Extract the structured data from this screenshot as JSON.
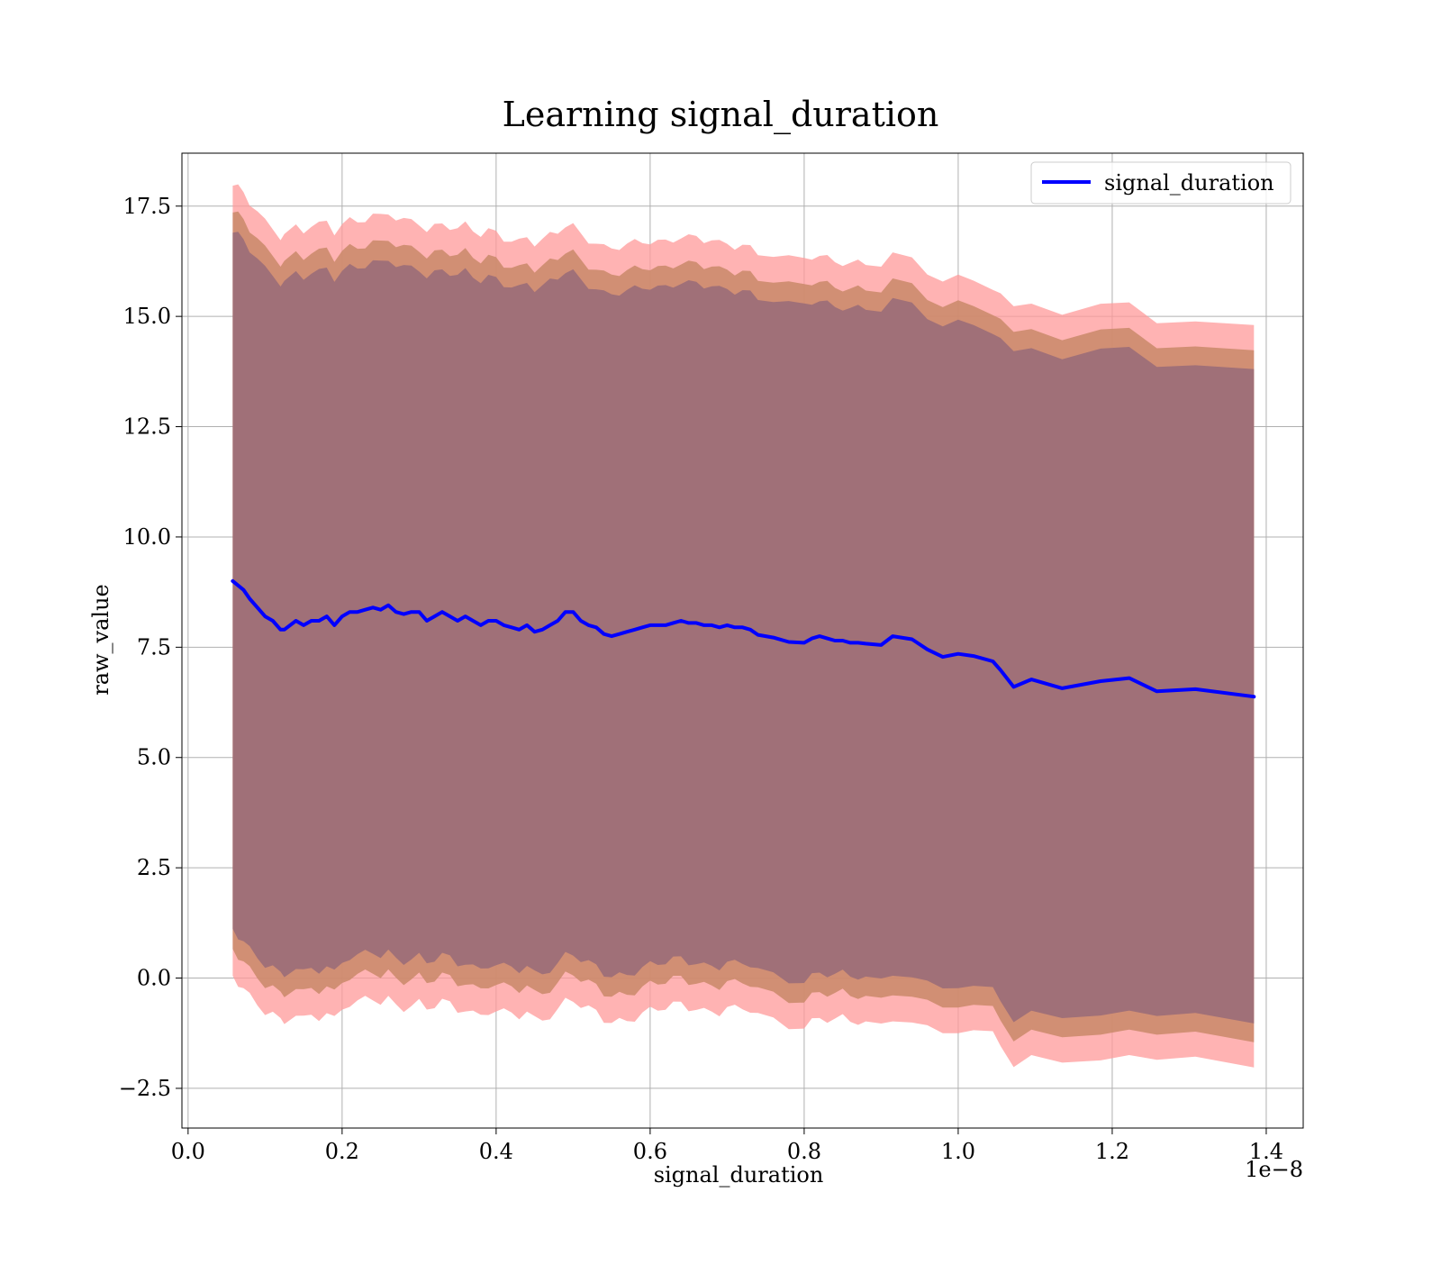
{
  "chart_data": {
    "type": "area",
    "title": "Learning signal_duration",
    "xlabel": "signal_duration",
    "ylabel": "raw_value",
    "x_offset_label": "1e−8",
    "xlim": [
      -0.008,
      1.448
    ],
    "ylim": [
      -3.4,
      18.7
    ],
    "x_ticks": [
      0.0,
      0.2,
      0.4,
      0.6,
      0.8,
      1.0,
      1.2,
      1.4
    ],
    "x_tick_labels": [
      "0.0",
      "0.2",
      "0.4",
      "0.6",
      "0.8",
      "1.0",
      "1.2",
      "1.4"
    ],
    "y_ticks": [
      -2.5,
      0.0,
      2.5,
      5.0,
      7.5,
      10.0,
      12.5,
      15.0,
      17.5
    ],
    "y_tick_labels": [
      "−2.5",
      "0.0",
      "2.5",
      "5.0",
      "7.5",
      "10.0",
      "12.5",
      "15.0",
      "17.5"
    ],
    "grid": true,
    "legend_position": "top-right",
    "colors": {
      "line": "#0000ff",
      "band_outer": "#ff9999",
      "band_middle": "#c98868",
      "band_inner": "#a07078",
      "grid": "#b0b0b0"
    },
    "series": [
      {
        "name": "signal_duration",
        "x": [
          0.058,
          0.065,
          0.072,
          0.08,
          0.09,
          0.1,
          0.11,
          0.12,
          0.125,
          0.14,
          0.15,
          0.16,
          0.17,
          0.18,
          0.19,
          0.2,
          0.21,
          0.22,
          0.23,
          0.24,
          0.25,
          0.26,
          0.27,
          0.28,
          0.29,
          0.3,
          0.31,
          0.32,
          0.33,
          0.34,
          0.35,
          0.36,
          0.37,
          0.38,
          0.39,
          0.4,
          0.41,
          0.42,
          0.43,
          0.44,
          0.45,
          0.46,
          0.47,
          0.48,
          0.49,
          0.5,
          0.51,
          0.52,
          0.53,
          0.54,
          0.55,
          0.56,
          0.57,
          0.58,
          0.59,
          0.6,
          0.61,
          0.62,
          0.63,
          0.64,
          0.65,
          0.66,
          0.67,
          0.68,
          0.69,
          0.7,
          0.71,
          0.72,
          0.73,
          0.74,
          0.76,
          0.78,
          0.8,
          0.81,
          0.82,
          0.83,
          0.84,
          0.85,
          0.86,
          0.87,
          0.88,
          0.9,
          0.915,
          0.94,
          0.96,
          0.98,
          1.0,
          1.02,
          1.045,
          1.055,
          1.072,
          1.095,
          1.135,
          1.185,
          1.222,
          1.258,
          1.308,
          1.384
        ],
        "y": [
          9.0,
          8.9,
          8.8,
          8.6,
          8.4,
          8.2,
          8.1,
          7.9,
          7.9,
          8.1,
          8.0,
          8.1,
          8.1,
          8.2,
          8.0,
          8.2,
          8.3,
          8.3,
          8.35,
          8.4,
          8.35,
          8.45,
          8.3,
          8.25,
          8.3,
          8.3,
          8.1,
          8.2,
          8.3,
          8.2,
          8.1,
          8.2,
          8.1,
          8.0,
          8.1,
          8.1,
          8.0,
          7.95,
          7.9,
          8.0,
          7.85,
          7.9,
          8.0,
          8.1,
          8.3,
          8.3,
          8.1,
          8.0,
          7.95,
          7.8,
          7.75,
          7.8,
          7.85,
          7.9,
          7.95,
          8.0,
          8.0,
          8.0,
          8.05,
          8.1,
          8.05,
          8.05,
          8.0,
          8.0,
          7.95,
          8.0,
          7.95,
          7.95,
          7.9,
          7.78,
          7.72,
          7.62,
          7.6,
          7.7,
          7.75,
          7.7,
          7.65,
          7.65,
          7.6,
          7.6,
          7.58,
          7.55,
          7.75,
          7.68,
          7.45,
          7.28,
          7.35,
          7.3,
          7.18,
          6.98,
          6.6,
          6.77,
          6.57,
          6.73,
          6.8,
          6.5,
          6.55,
          6.38
        ]
      }
    ]
  }
}
